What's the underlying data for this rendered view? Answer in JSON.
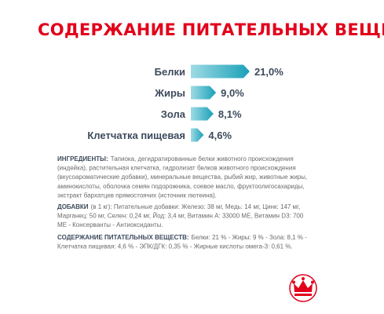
{
  "chart_data": {
    "type": "bar",
    "orientation": "horizontal",
    "title": "СОДЕРЖАНИЕ ПИТАТЕЛЬНЫХ ВЕЩЕСТВ",
    "categories": [
      "Белки",
      "Жиры",
      "Зола",
      "Клетчатка пищевая"
    ],
    "values": [
      21.0,
      9.0,
      8.1,
      4.6
    ],
    "value_labels": [
      "21,0%",
      "9,0%",
      "8,1%",
      "4,6%"
    ],
    "color": "#1aa0b8"
  },
  "paragraphs": [
    {
      "heading": "ИНГРЕДИЕНТЫ:",
      "lines": [
        "Тапиока, дегидратированные белки животного происхождения",
        "(индейка), растительная клетчатка, гидролизат белков животного происхождения",
        "(вкусоароматические добавки), минеральные вещества, рыбий жир, животные жиры,",
        "аминокислоты, оболочка семян подорожника, соевое масло, фруктоолигосахариды,",
        "экстракт бархатцев прямостоячих (источник лютеина)."
      ]
    },
    {
      "heading": "ДОБАВКИ",
      "lines": [
        "(в 1 кг): Питательные добавки: Железо: 38 мг, Медь: 14 мг, Цинк: 147 мг,",
        "Марганец: 50 мг, Селен: 0,24 мг, Йод: 3,4 мг, Витамин А: 33000 МЕ, Витамин D3: 700",
        "МЕ - Консерванты - Антиоксиданты."
      ]
    },
    {
      "heading": "СОДЕРЖАНИЕ ПИТАТЕЛЬНЫХ ВЕЩЕСТВ:",
      "lines": [
        "Белки: 21 % - Жиры: 9 % - Зола: 8,1 % -",
        "Клетчатка пищевая: 4,6 % - ЭПК/ДГК: 0,35 % - Жирные кислоты омега-3: 0,61 %."
      ]
    }
  ]
}
